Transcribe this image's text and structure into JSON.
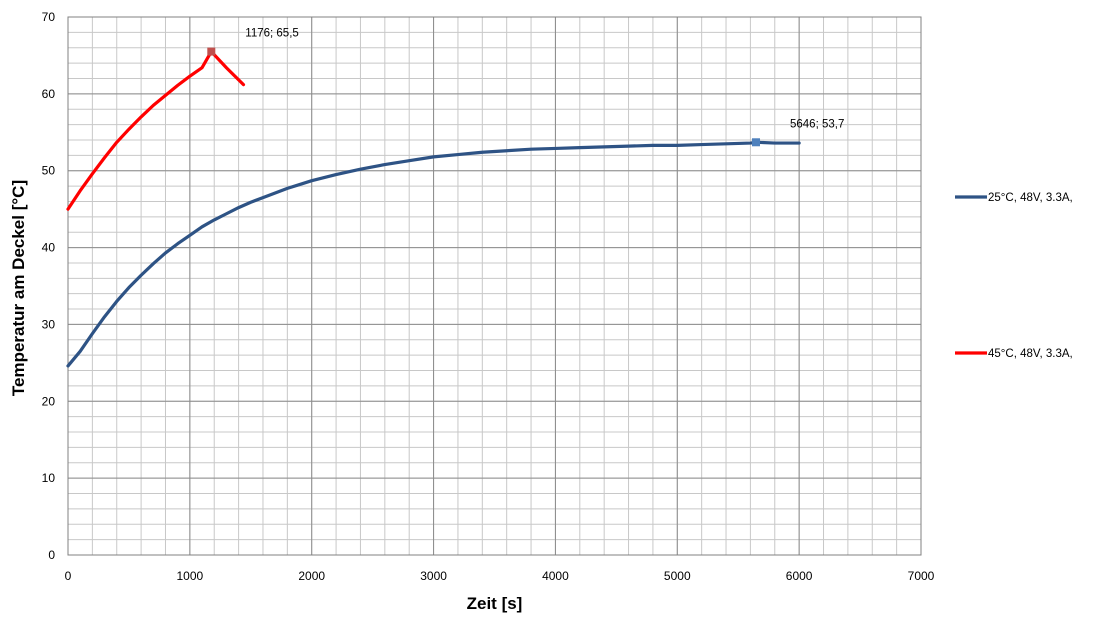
{
  "chart_data": {
    "type": "line",
    "xlabel": "Zeit [s]",
    "ylabel": "Temperatur  am Deckel [°C]",
    "xlim": [
      0,
      7000
    ],
    "ylim": [
      0,
      70
    ],
    "x_ticks": [
      0,
      1000,
      2000,
      3000,
      4000,
      5000,
      6000,
      7000
    ],
    "y_ticks": [
      0,
      10,
      20,
      30,
      40,
      50,
      60,
      70
    ],
    "x_minor_step": 200,
    "y_minor_step": 2,
    "grid": true,
    "legend_position": "right",
    "series": [
      {
        "name": "25°C, 48V, 3.3A,",
        "color": "#2e5385",
        "points": [
          [
            0,
            24.6
          ],
          [
            100,
            26.5
          ],
          [
            200,
            28.8
          ],
          [
            300,
            31.0
          ],
          [
            400,
            33.0
          ],
          [
            500,
            34.8
          ],
          [
            600,
            36.4
          ],
          [
            700,
            37.9
          ],
          [
            800,
            39.3
          ],
          [
            900,
            40.5
          ],
          [
            1000,
            41.6
          ],
          [
            1100,
            42.7
          ],
          [
            1200,
            43.6
          ],
          [
            1300,
            44.4
          ],
          [
            1400,
            45.2
          ],
          [
            1500,
            45.9
          ],
          [
            1600,
            46.5
          ],
          [
            1700,
            47.1
          ],
          [
            1800,
            47.7
          ],
          [
            1900,
            48.2
          ],
          [
            2000,
            48.7
          ],
          [
            2200,
            49.5
          ],
          [
            2400,
            50.2
          ],
          [
            2600,
            50.8
          ],
          [
            2800,
            51.3
          ],
          [
            3000,
            51.8
          ],
          [
            3200,
            52.1
          ],
          [
            3400,
            52.4
          ],
          [
            3600,
            52.6
          ],
          [
            3800,
            52.8
          ],
          [
            4000,
            52.9
          ],
          [
            4200,
            53.0
          ],
          [
            4400,
            53.1
          ],
          [
            4600,
            53.2
          ],
          [
            4800,
            53.3
          ],
          [
            5000,
            53.3
          ],
          [
            5200,
            53.4
          ],
          [
            5400,
            53.5
          ],
          [
            5600,
            53.6
          ],
          [
            5646,
            53.7
          ],
          [
            5800,
            53.6
          ],
          [
            6000,
            53.6
          ]
        ]
      },
      {
        "name": "45°C, 48V, 3.3A,",
        "color": "#ff0000",
        "points": [
          [
            0,
            45.0
          ],
          [
            100,
            47.4
          ],
          [
            200,
            49.6
          ],
          [
            300,
            51.7
          ],
          [
            400,
            53.7
          ],
          [
            500,
            55.4
          ],
          [
            600,
            57.0
          ],
          [
            700,
            58.5
          ],
          [
            800,
            59.8
          ],
          [
            900,
            61.1
          ],
          [
            1000,
            62.3
          ],
          [
            1100,
            63.4
          ],
          [
            1176,
            65.5
          ],
          [
            1300,
            63.4
          ],
          [
            1440,
            61.2
          ]
        ]
      }
    ],
    "annotations": [
      {
        "series": 1,
        "x": 1176,
        "y": 65.5,
        "text": "1176; 65,5",
        "marker_color": "#c0504d"
      },
      {
        "series": 0,
        "x": 5646,
        "y": 53.7,
        "text": "5646; 53,7",
        "marker_color": "#4f81bd"
      }
    ]
  }
}
